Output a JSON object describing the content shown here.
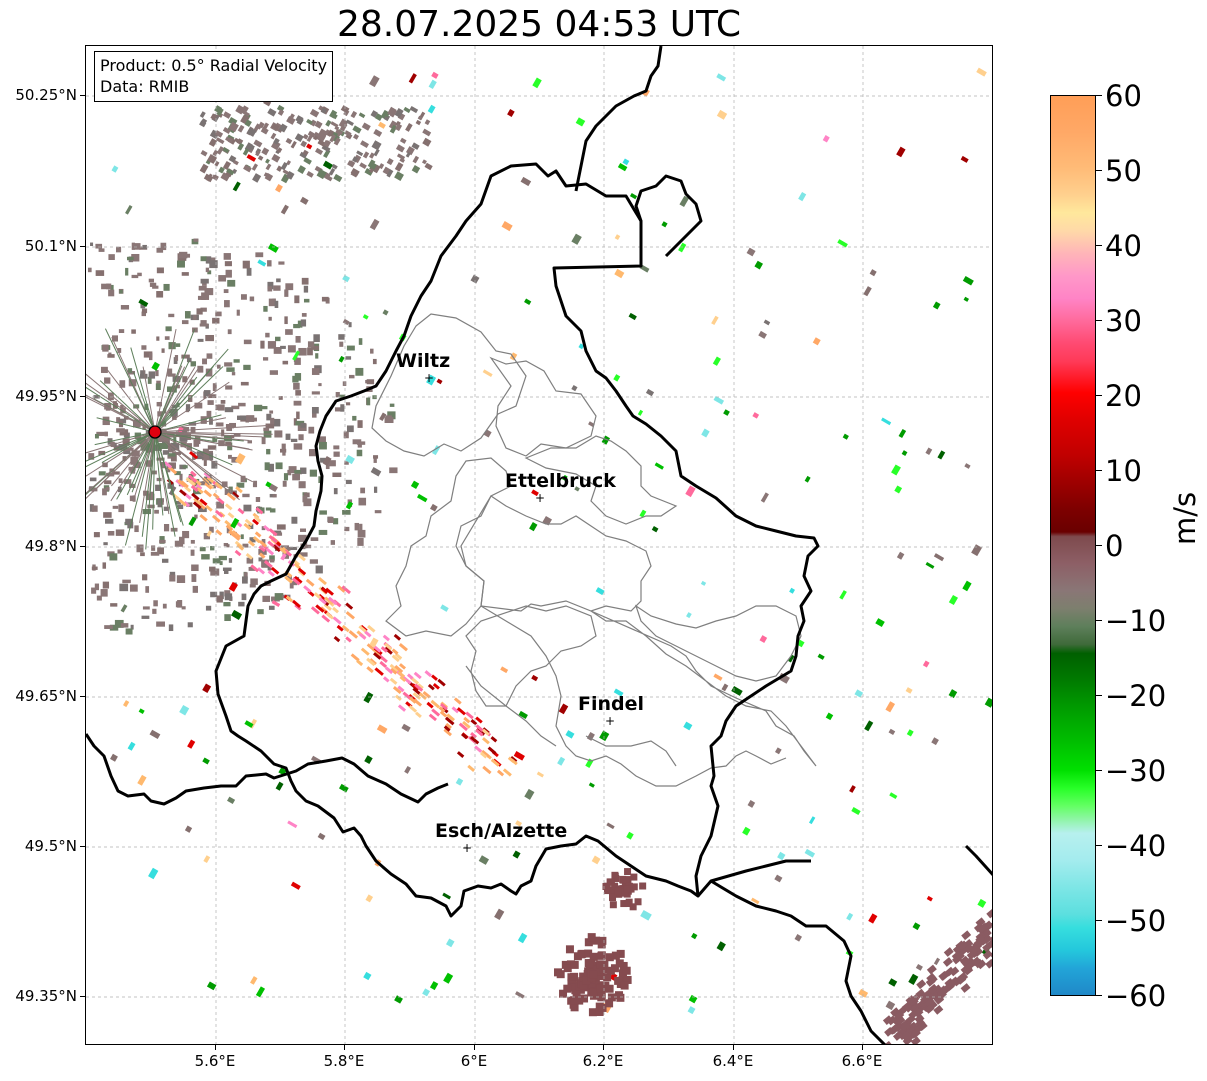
{
  "title": "28.07.2025 04:53 UTC",
  "info": {
    "product": "Product: 0.5° Radial Velocity",
    "source": "Data: RMIB"
  },
  "axes": {
    "lat_ticks": [
      "50.25°N",
      "50.1°N",
      "49.95°N",
      "49.8°N",
      "49.65°N",
      "49.5°N",
      "49.35°N"
    ],
    "lon_ticks": [
      "5.6°E",
      "5.8°E",
      "6°E",
      "6.2°E",
      "6.4°E",
      "6.6°E"
    ]
  },
  "colorbar": {
    "ticks": [
      "60",
      "50",
      "40",
      "30",
      "20",
      "10",
      "0",
      "−10",
      "−20",
      "−30",
      "−40",
      "−50",
      "−60"
    ],
    "unit": "m/s",
    "min": -60,
    "max": 60
  },
  "cities": [
    {
      "name": "Wiltz"
    },
    {
      "name": "Ettelbruck"
    },
    {
      "name": "Findel"
    },
    {
      "name": "Esch/Alzette"
    }
  ],
  "colors": {
    "radar_site": "#e0000f",
    "border": "#000000",
    "canton_lines": "#7f7f7f",
    "grid": "#b0b0b0",
    "near_zero_velocity": "#8a7676"
  }
}
